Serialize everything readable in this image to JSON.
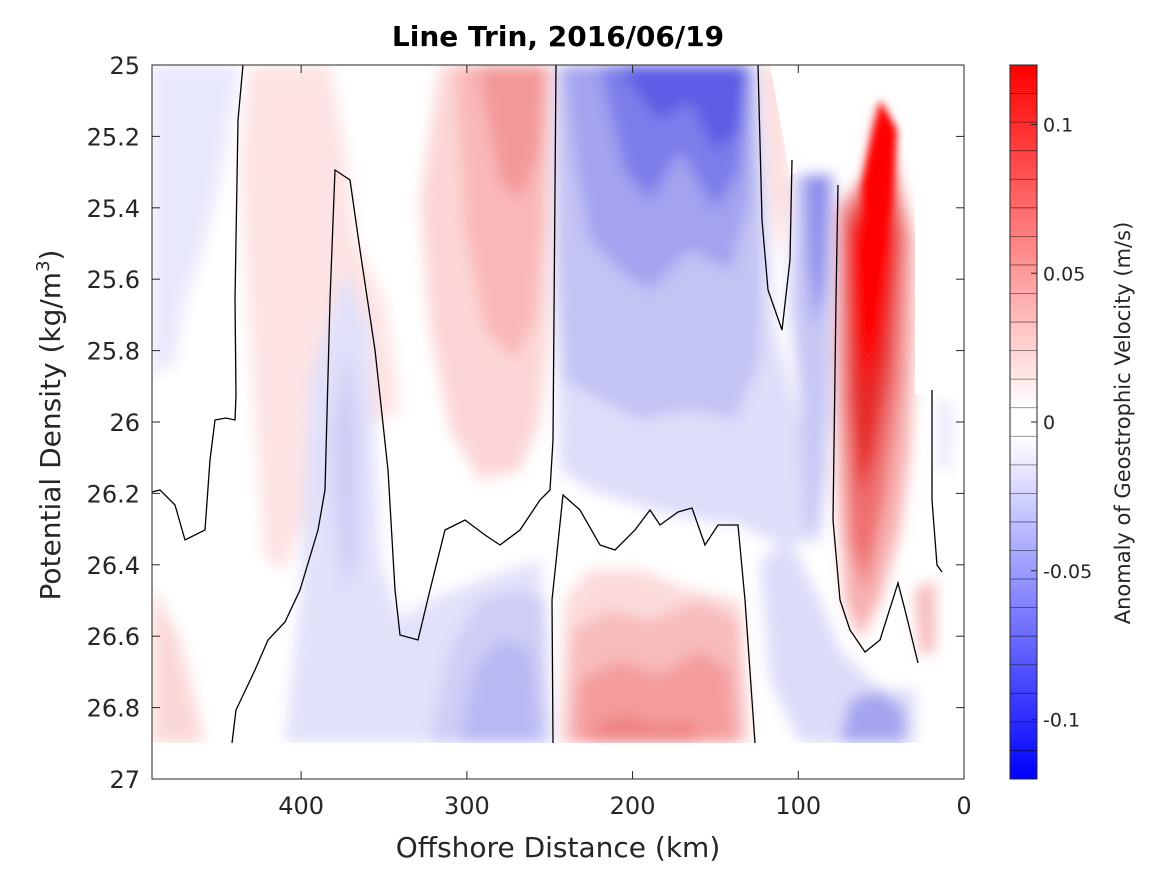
{
  "chart_data": {
    "type": "heatmap",
    "title": "Line Trin, 2016/06/19",
    "xlabel": "Offshore Distance (km)",
    "ylabel": "Potential Density (kg/m",
    "ylabel_sup": "3",
    "ylabel_close": ")",
    "xlim": [
      490,
      0
    ],
    "x_reversed": true,
    "ylim": [
      25,
      27
    ],
    "y_reversed": true,
    "x_ticks": [
      400,
      300,
      200,
      100,
      0
    ],
    "y_ticks": [
      25,
      25.2,
      25.4,
      25.6,
      25.8,
      26,
      26.2,
      26.4,
      26.6,
      26.8,
      27
    ],
    "x_tick_labels": [
      "400",
      "300",
      "200",
      "100",
      "0"
    ],
    "y_tick_labels": [
      "25",
      "25.2",
      "25.4",
      "25.6",
      "25.8",
      "26",
      "26.2",
      "26.4",
      "26.6",
      "26.8",
      "27"
    ],
    "colorbar": {
      "label": "Anomaly of Geostrophic Velocity (m/s)",
      "range": [
        -0.12,
        0.12
      ],
      "levels": 25,
      "ticks": [
        0.1,
        0.05,
        0,
        -0.05,
        -0.1
      ],
      "tick_labels": [
        "0.1",
        "0.05",
        "0",
        "-0.05",
        "-0.1"
      ],
      "colormap": "blue-white-red",
      "color_positive": "#ff0000",
      "color_negative": "#0000ff",
      "color_zero": "#ffffff"
    },
    "features": [
      {
        "name": "offshore-high-positive",
        "x": 55,
        "y_top": 25.1,
        "y_bottom": 26.6,
        "peak": 0.12
      },
      {
        "name": "upper-positive-core",
        "x": 275,
        "y_top": 25,
        "y_bottom": 26.0,
        "peak": 0.05
      },
      {
        "name": "upper-negative-core",
        "x": 170,
        "y_top": 25,
        "y_bottom": 26.3,
        "peak": -0.07
      },
      {
        "name": "lower-positive-core",
        "x": 195,
        "y_top": 26.4,
        "y_bottom": 26.9,
        "peak": 0.05
      },
      {
        "name": "lower-negative-core",
        "x": 275,
        "y_top": 26.5,
        "y_bottom": 26.9,
        "peak": -0.04
      }
    ]
  }
}
